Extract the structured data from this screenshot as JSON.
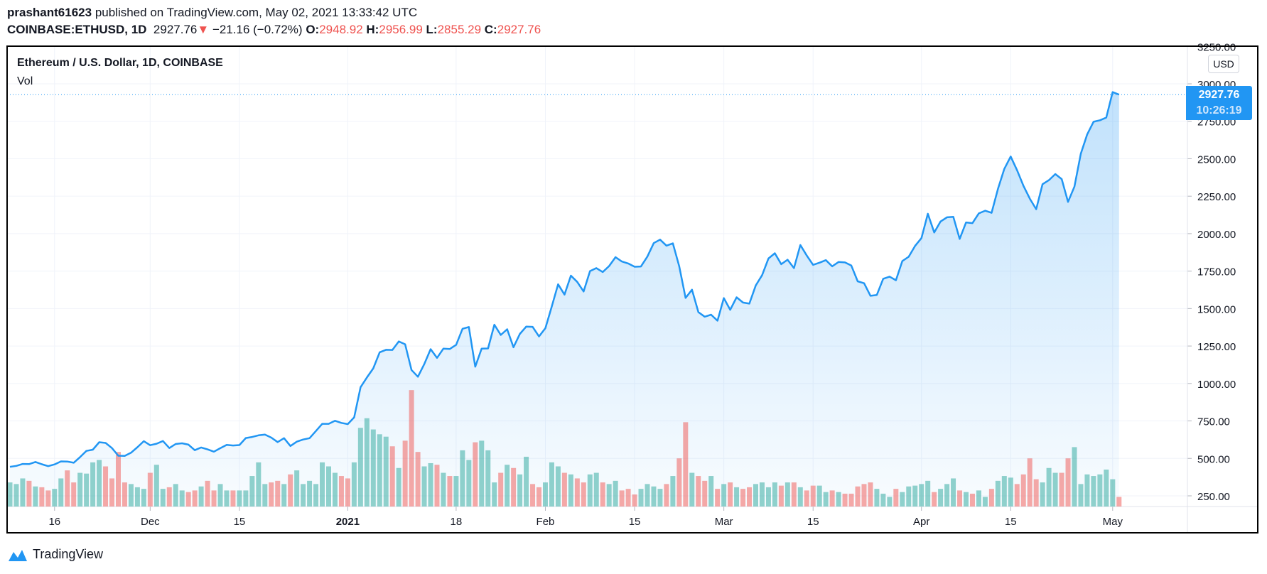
{
  "header": {
    "author": "prashant61623",
    "published": "published on TradingView.com, May 02, 2021 13:33:42 UTC",
    "symbol": "COINBASE:ETHUSD, 1D",
    "last": "2927.76",
    "change": "−21.16 (−0.72%)",
    "o_label": "O:",
    "o": "2948.92",
    "h_label": "H:",
    "h": "2956.99",
    "l_label": "L:",
    "l": "2855.29",
    "c_label": "C:",
    "c": "2927.76"
  },
  "chart_title": "Ethereum / U.S. Dollar, 1D, COINBASE",
  "volume_label": "Vol",
  "currency": "USD",
  "price_label": {
    "price": "2927.76",
    "countdown": "10:26:19"
  },
  "logo_text": "TradingView",
  "colors": {
    "line": "#2196f3",
    "up_volume": "#26a69a",
    "down_volume": "#ef5350",
    "change_down": "#ef5350"
  },
  "chart_data": {
    "type": "area",
    "start_date": "2020-11-09",
    "end_date": "2021-05-02",
    "ylim": [
      250,
      3250
    ],
    "yticks": [
      "250.00",
      "500.00",
      "750.00",
      "1000.00",
      "1250.00",
      "1500.00",
      "1750.00",
      "2000.00",
      "2250.00",
      "2500.00",
      "2750.00",
      "3000.00",
      "3250.00"
    ],
    "xticks": [
      {
        "date": "2020-11-16",
        "label": "16"
      },
      {
        "date": "2020-12-01",
        "label": "Dec"
      },
      {
        "date": "2020-12-15",
        "label": "15"
      },
      {
        "date": "2021-01-01",
        "label": "2021"
      },
      {
        "date": "2021-01-18",
        "label": "18"
      },
      {
        "date": "2021-02-01",
        "label": "Feb"
      },
      {
        "date": "2021-02-15",
        "label": "15"
      },
      {
        "date": "2021-03-01",
        "label": "Mar"
      },
      {
        "date": "2021-03-15",
        "label": "15"
      },
      {
        "date": "2021-04-01",
        "label": "Apr"
      },
      {
        "date": "2021-04-15",
        "label": "15"
      },
      {
        "date": "2021-05-01",
        "label": "May"
      }
    ],
    "grid": true,
    "close": [
      444,
      450,
      463,
      462,
      476,
      461,
      448,
      460,
      480,
      479,
      471,
      509,
      550,
      558,
      608,
      603,
      569,
      518,
      517,
      538,
      575,
      615,
      588,
      598,
      616,
      569,
      596,
      601,
      592,
      555,
      573,
      560,
      545,
      568,
      590,
      586,
      589,
      636,
      643,
      654,
      659,
      639,
      609,
      635,
      583,
      612,
      626,
      635,
      683,
      731,
      731,
      751,
      737,
      729,
      774,
      975,
      1040,
      1101,
      1208,
      1225,
      1224,
      1281,
      1262,
      1090,
      1045,
      1130,
      1229,
      1171,
      1233,
      1230,
      1258,
      1365,
      1377,
      1112,
      1233,
      1234,
      1392,
      1324,
      1362,
      1242,
      1331,
      1380,
      1378,
      1314,
      1369,
      1514,
      1662,
      1593,
      1720,
      1678,
      1614,
      1750,
      1770,
      1744,
      1784,
      1843,
      1814,
      1801,
      1779,
      1781,
      1847,
      1937,
      1960,
      1920,
      1935,
      1781,
      1571,
      1626,
      1476,
      1446,
      1459,
      1419,
      1570,
      1492,
      1575,
      1540,
      1533,
      1654,
      1723,
      1834,
      1869,
      1796,
      1826,
      1770,
      1924,
      1854,
      1792,
      1806,
      1823,
      1782,
      1811,
      1808,
      1787,
      1682,
      1669,
      1585,
      1591,
      1699,
      1713,
      1689,
      1817,
      1846,
      1918,
      1970,
      2133,
      2008,
      2081,
      2109,
      2112,
      1965,
      2075,
      2070,
      2135,
      2153,
      2139,
      2299,
      2432,
      2515,
      2423,
      2320,
      2234,
      2163,
      2330,
      2357,
      2398,
      2364,
      2212,
      2314,
      2534,
      2662,
      2747,
      2757,
      2775,
      2945,
      2927.76
    ],
    "volume": [
      30,
      28,
      35,
      32,
      25,
      24,
      20,
      22,
      35,
      45,
      30,
      42,
      41,
      55,
      58,
      50,
      35,
      68,
      30,
      28,
      24,
      22,
      42,
      52,
      22,
      24,
      28,
      20,
      18,
      20,
      25,
      32,
      20,
      28,
      20,
      20,
      20,
      20,
      38,
      55,
      28,
      30,
      32,
      28,
      40,
      45,
      28,
      32,
      28,
      55,
      50,
      42,
      38,
      35,
      55,
      98,
      110,
      96,
      90,
      87,
      75,
      48,
      82,
      145,
      68,
      50,
      54,
      52,
      42,
      38,
      38,
      70,
      58,
      80,
      82,
      70,
      30,
      42,
      52,
      48,
      40,
      62,
      28,
      24,
      30,
      55,
      50,
      42,
      40,
      35,
      30,
      40,
      42,
      30,
      28,
      32,
      20,
      22,
      15,
      22,
      28,
      25,
      22,
      28,
      38,
      60,
      105,
      42,
      38,
      32,
      38,
      22,
      28,
      30,
      24,
      22,
      24,
      28,
      30,
      24,
      30,
      26,
      30,
      30,
      24,
      20,
      26,
      26,
      18,
      20,
      18,
      16,
      16,
      25,
      28,
      30,
      22,
      16,
      12,
      22,
      18,
      25,
      26,
      28,
      32,
      18,
      22,
      28,
      35,
      20,
      18,
      16,
      20,
      12,
      22,
      32,
      38,
      36,
      28,
      40,
      60,
      34,
      30,
      48,
      42,
      42,
      60,
      74,
      28,
      40,
      38,
      40,
      46,
      34,
      12
    ]
  }
}
